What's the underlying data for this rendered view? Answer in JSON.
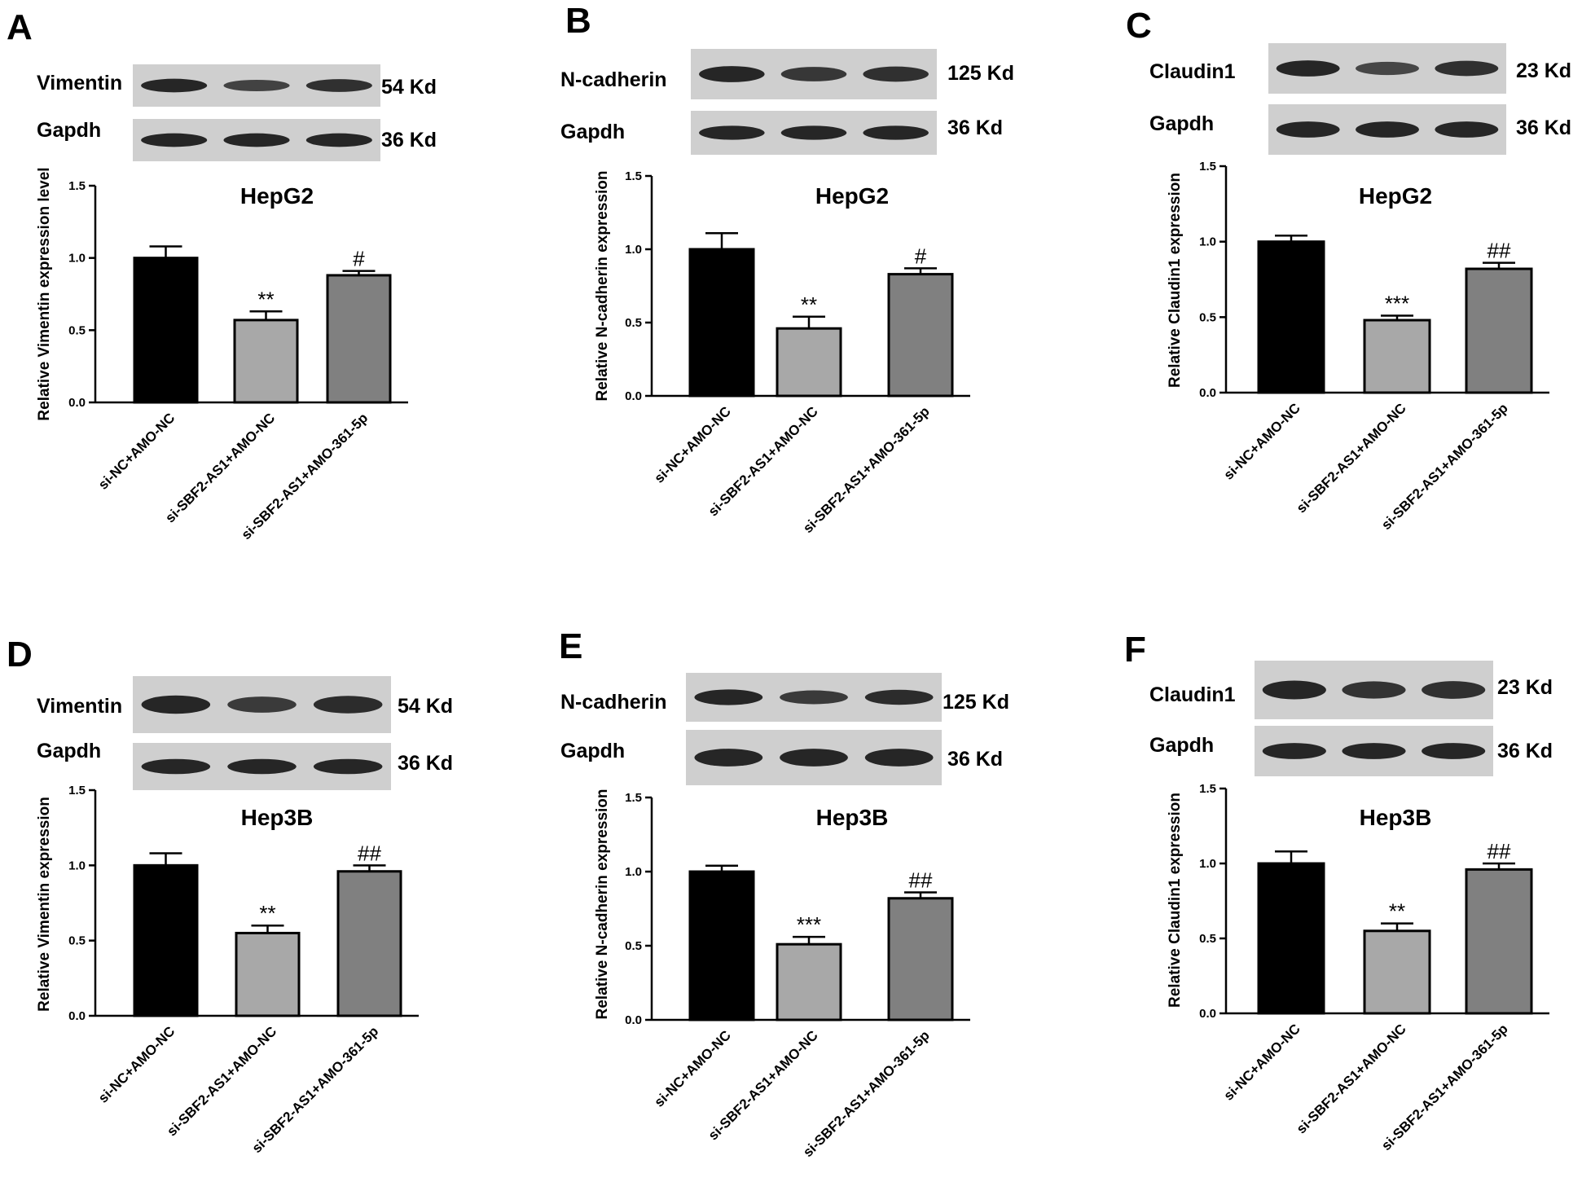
{
  "colors": {
    "bar_black": "#000000",
    "bar_light": "#a8a8a8",
    "bar_mid": "#808080",
    "blot_bg": "#cfcfcf",
    "band": "#1c1c1c"
  },
  "chart_data": [
    {
      "panel": "A",
      "type": "bar",
      "title": "HepG2",
      "ylabel": "Relative Vimentin expression level",
      "ylim": [
        0,
        1.5
      ],
      "yticks": [
        "0.0",
        "0.5",
        "1.0",
        "1.5"
      ],
      "categories": [
        "si-NC+AMO-NC",
        "si-SBF2-AS1+AMO-NC",
        "si-SBF2-AS1+AMO-361-5p"
      ],
      "values": [
        1.0,
        0.57,
        0.88
      ],
      "errors": [
        0.08,
        0.06,
        0.03
      ],
      "annotations": [
        "",
        "**",
        "#"
      ],
      "blot": [
        {
          "protein": "Vimentin",
          "size": "54 Kd",
          "intensity": [
            1.0,
            0.6,
            0.85
          ]
        },
        {
          "protein": "Gapdh",
          "size": "36 Kd",
          "intensity": [
            1.0,
            1.0,
            1.0
          ]
        }
      ]
    },
    {
      "panel": "B",
      "type": "bar",
      "title": "HepG2",
      "ylabel": "Relative N-cadherin expression",
      "ylim": [
        0,
        1.5
      ],
      "yticks": [
        "0.0",
        "0.5",
        "1.0",
        "1.5"
      ],
      "categories": [
        "si-NC+AMO-NC",
        "si-SBF2-AS1+AMO-NC",
        "si-SBF2-AS1+AMO-361-5p"
      ],
      "values": [
        1.0,
        0.46,
        0.83
      ],
      "errors": [
        0.11,
        0.08,
        0.04
      ],
      "annotations": [
        "",
        "**",
        "#"
      ],
      "blot": [
        {
          "protein": "N-cadherin",
          "size": "125 Kd",
          "intensity": [
            1.0,
            0.75,
            0.85
          ]
        },
        {
          "protein": "Gapdh",
          "size": "36 Kd",
          "intensity": [
            1.0,
            1.0,
            1.0
          ]
        }
      ]
    },
    {
      "panel": "C",
      "type": "bar",
      "title": "HepG2",
      "ylabel": "Relative Claudin1 expression",
      "ylim": [
        0,
        1.5
      ],
      "yticks": [
        "0.0",
        "0.5",
        "1.0",
        "1.5"
      ],
      "categories": [
        "si-NC+AMO-NC",
        "si-SBF2-AS1+AMO-NC",
        "si-SBF2-AS1+AMO-361-5p"
      ],
      "values": [
        1.0,
        0.48,
        0.82
      ],
      "errors": [
        0.04,
        0.03,
        0.04
      ],
      "annotations": [
        "",
        "***",
        "##"
      ],
      "blot": [
        {
          "protein": "Claudin1",
          "size": "23 Kd",
          "intensity": [
            1.0,
            0.55,
            0.85
          ]
        },
        {
          "protein": "Gapdh",
          "size": "36 Kd",
          "intensity": [
            1.0,
            1.0,
            1.0
          ]
        }
      ]
    },
    {
      "panel": "D",
      "type": "bar",
      "title": "Hep3B",
      "ylabel": "Relative Vimentin expression",
      "ylim": [
        0,
        1.5
      ],
      "yticks": [
        "0.0",
        "0.5",
        "1.0",
        "1.5"
      ],
      "categories": [
        "si-NC+AMO-NC",
        "si-SBF2-AS1+AMO-NC",
        "si-SBF2-AS1+AMO-361-5p"
      ],
      "values": [
        1.0,
        0.55,
        0.96
      ],
      "errors": [
        0.08,
        0.05,
        0.04
      ],
      "annotations": [
        "",
        "**",
        "##"
      ],
      "blot": [
        {
          "protein": "Vimentin",
          "size": "54 Kd",
          "intensity": [
            1.0,
            0.7,
            0.9
          ]
        },
        {
          "protein": "Gapdh",
          "size": "36 Kd",
          "intensity": [
            1.0,
            1.0,
            1.0
          ]
        }
      ]
    },
    {
      "panel": "E",
      "type": "bar",
      "title": "Hep3B",
      "ylabel": "Relative N-cadherin expression",
      "ylim": [
        0,
        1.5
      ],
      "yticks": [
        "0.0",
        "0.5",
        "1.0",
        "1.5"
      ],
      "categories": [
        "si-NC+AMO-NC",
        "si-SBF2-AS1+AMO-NC",
        "si-SBF2-AS1+AMO-361-5p"
      ],
      "values": [
        1.0,
        0.51,
        0.82
      ],
      "errors": [
        0.04,
        0.05,
        0.04
      ],
      "annotations": [
        "",
        "***",
        "##"
      ],
      "blot": [
        {
          "protein": "N-cadherin",
          "size": "125 Kd",
          "intensity": [
            1.0,
            0.7,
            0.9
          ]
        },
        {
          "protein": "Gapdh",
          "size": "36 Kd",
          "intensity": [
            1.0,
            1.0,
            1.0
          ]
        }
      ]
    },
    {
      "panel": "F",
      "type": "bar",
      "title": "Hep3B",
      "ylabel": "Relative Claudin1 expression",
      "ylim": [
        0,
        1.5
      ],
      "yticks": [
        "0.0",
        "0.5",
        "1.0",
        "1.5"
      ],
      "categories": [
        "si-NC+AMO-NC",
        "si-SBF2-AS1+AMO-NC",
        "si-SBF2-AS1+AMO-361-5p"
      ],
      "values": [
        1.0,
        0.55,
        0.96
      ],
      "errors": [
        0.08,
        0.05,
        0.04
      ],
      "annotations": [
        "",
        "**",
        "##"
      ],
      "blot": [
        {
          "protein": "Claudin1",
          "size": "23 Kd",
          "intensity": [
            1.0,
            0.8,
            0.85
          ]
        },
        {
          "protein": "Gapdh",
          "size": "36 Kd",
          "intensity": [
            1.0,
            1.0,
            1.0
          ]
        }
      ]
    }
  ]
}
